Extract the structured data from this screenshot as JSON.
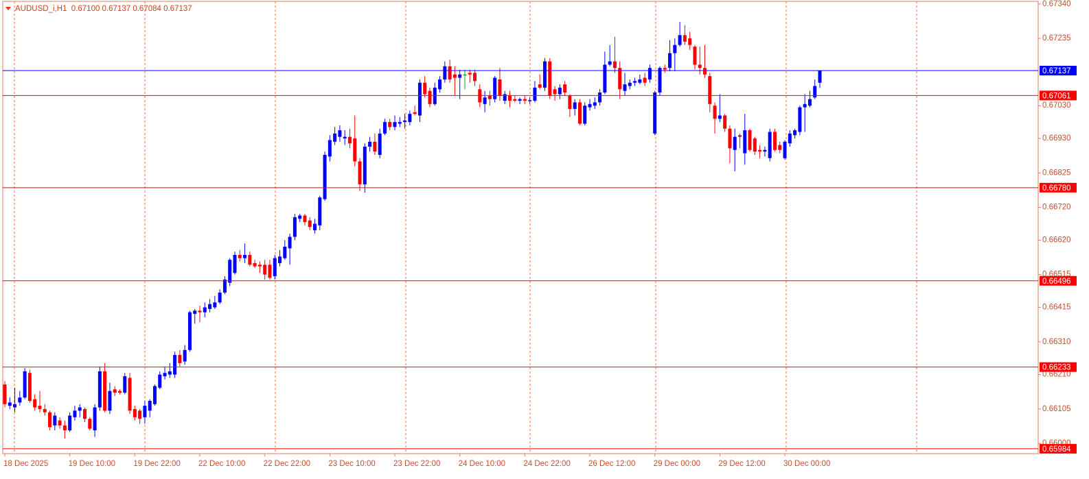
{
  "chart_data": {
    "type": "candlestick",
    "title": "AUDUSD_i,H1  0.67100 0.67137 0.67084 0.67137",
    "bull_color": "#0000ff",
    "bear_color": "#ff0000",
    "doji_color": "#00b000",
    "categories": [
      "18 Dec 2025",
      null,
      null,
      null,
      null,
      null,
      null,
      null,
      null,
      null,
      null,
      null,
      null,
      "19 Dec 10:00",
      null,
      null,
      null,
      null,
      null,
      null,
      null,
      null,
      null,
      null,
      null,
      null,
      "19 Dec 22:00",
      null,
      null,
      null,
      null,
      null,
      null,
      null,
      null,
      null,
      null,
      null,
      null,
      "22 Dec 10:00",
      null,
      null,
      null,
      null,
      null,
      null,
      null,
      null,
      null,
      null,
      null,
      null,
      "22 Dec 22:00",
      null,
      null,
      null,
      null,
      null,
      null,
      null,
      null,
      null,
      null,
      null,
      null,
      "23 Dec 10:00",
      null,
      null,
      null,
      null,
      null,
      null,
      null,
      null,
      null,
      null,
      null,
      null,
      "23 Dec 22:00",
      null,
      null,
      null,
      null,
      null,
      null,
      null,
      null,
      null,
      null,
      null,
      null,
      "24 Dec 10:00",
      null,
      null,
      null,
      null,
      null,
      null,
      null,
      null,
      null,
      null,
      null,
      null,
      "24 Dec 22:00",
      null,
      null,
      null,
      null,
      null,
      null,
      null,
      null,
      null,
      null,
      null,
      null,
      "26 Dec 12:00",
      null,
      null,
      null,
      null,
      null,
      null,
      null,
      null,
      null,
      null,
      null,
      null,
      "29 Dec 00:00",
      null,
      null,
      null,
      null,
      null,
      null,
      null,
      null,
      null,
      null,
      null,
      null,
      "29 Dec 12:00",
      null,
      null,
      null,
      null,
      null,
      null,
      null,
      null,
      null,
      null,
      null,
      null,
      "30 Dec 00:00",
      null,
      null,
      null,
      null,
      null,
      null,
      null
    ],
    "open": [
      0.6618,
      0.66115,
      0.6611,
      0.66125,
      0.6614,
      0.66215,
      0.66135,
      0.66115,
      0.66105,
      0.66095,
      0.66055,
      0.6607,
      0.66055,
      0.6604,
      0.6608,
      0.661,
      0.66105,
      0.66075,
      0.6604,
      0.6611,
      0.6622,
      0.661,
      0.66165,
      0.6616,
      0.66155,
      0.662,
      0.66105,
      0.661,
      0.6608,
      0.661,
      0.6612,
      0.6617,
      0.66205,
      0.6621,
      0.6621,
      0.6627,
      0.6625,
      0.66285,
      0.66395,
      0.66405,
      0.664,
      0.6641,
      0.66415,
      0.6643,
      0.6646,
      0.6649,
      0.6652,
      0.66575,
      0.66565,
      0.66575,
      0.6655,
      0.66545,
      0.66545,
      0.66545,
      0.6651,
      0.6655,
      0.66565,
      0.66595,
      0.6663,
      0.66685,
      0.66695,
      0.6668,
      0.6665,
      0.66665,
      0.66745,
      0.66875,
      0.6692,
      0.66935,
      0.6693,
      0.66935,
      0.6693,
      0.6686,
      0.6679,
      0.66905,
      0.6692,
      0.6688,
      0.66945,
      0.6698,
      0.66965,
      0.66975,
      0.6698,
      0.6698,
      0.6701,
      0.67,
      0.671,
      0.67075,
      0.67035,
      0.6708,
      0.6711,
      0.6715,
      0.67125,
      0.67115,
      0.67125,
      0.6713,
      0.6713,
      0.6708,
      0.67035,
      0.6706,
      0.6705,
      0.6711,
      0.67045,
      0.6706,
      0.6705,
      0.67045,
      0.6705,
      0.67045,
      0.67045,
      0.67095,
      0.67085,
      0.67165,
      0.6708,
      0.67065,
      0.67095,
      0.6706,
      0.6702,
      0.6704,
      0.66975,
      0.67025,
      0.6703,
      0.6704,
      0.6707,
      0.67155,
      0.67165,
      0.67145,
      0.67075,
      0.6709,
      0.671,
      0.671,
      0.67115,
      0.6711,
      0.66945,
      0.6707,
      0.67145,
      0.67145,
      0.6719,
      0.67215,
      0.67245,
      0.67235,
      0.6721,
      0.67155,
      0.67145,
      0.6712,
      0.6703,
      0.6699,
      0.67,
      0.6696,
      0.66895,
      0.6694,
      0.66885,
      0.66955,
      0.6693,
      0.66895,
      0.6689,
      0.6687,
      0.6695,
      0.6691,
      0.6687,
      0.66915,
      0.6694,
      0.6695,
      0.67025,
      0.6703,
      0.67055,
      0.671
    ],
    "high": [
      0.6619,
      0.6614,
      0.6617,
      0.6616,
      0.6623,
      0.66225,
      0.6615,
      0.6616,
      0.6612,
      0.661,
      0.66095,
      0.6608,
      0.6607,
      0.66095,
      0.66115,
      0.6612,
      0.6611,
      0.6608,
      0.6612,
      0.66235,
      0.66245,
      0.66185,
      0.66175,
      0.66165,
      0.66215,
      0.66215,
      0.66115,
      0.66105,
      0.6613,
      0.66135,
      0.6618,
      0.6622,
      0.66235,
      0.66245,
      0.6628,
      0.66285,
      0.663,
      0.66405,
      0.6641,
      0.6642,
      0.6643,
      0.6644,
      0.6645,
      0.6647,
      0.6651,
      0.66565,
      0.66585,
      0.6659,
      0.6661,
      0.66585,
      0.6656,
      0.66555,
      0.6656,
      0.6656,
      0.66575,
      0.6659,
      0.6662,
      0.6664,
      0.667,
      0.667,
      0.667,
      0.6669,
      0.66685,
      0.66755,
      0.6689,
      0.6694,
      0.66965,
      0.6697,
      0.66955,
      0.6696,
      0.67,
      0.6687,
      0.66915,
      0.66935,
      0.66945,
      0.6696,
      0.6699,
      0.6699,
      0.67,
      0.66995,
      0.67005,
      0.67015,
      0.6703,
      0.6711,
      0.6712,
      0.67085,
      0.671,
      0.6712,
      0.67165,
      0.6717,
      0.6715,
      0.6714,
      0.6714,
      0.6714,
      0.6714,
      0.67095,
      0.67075,
      0.67075,
      0.6712,
      0.67145,
      0.67075,
      0.67075,
      0.6706,
      0.67055,
      0.6706,
      0.67055,
      0.67105,
      0.67125,
      0.67175,
      0.67175,
      0.6709,
      0.67095,
      0.67105,
      0.67065,
      0.6705,
      0.6705,
      0.6704,
      0.6705,
      0.67055,
      0.6708,
      0.67195,
      0.67215,
      0.6724,
      0.67165,
      0.6713,
      0.6711,
      0.67115,
      0.67125,
      0.6713,
      0.67155,
      0.67075,
      0.6715,
      0.67155,
      0.6723,
      0.67235,
      0.67285,
      0.67275,
      0.67255,
      0.67215,
      0.6721,
      0.67215,
      0.6713,
      0.6704,
      0.67065,
      0.67005,
      0.6697,
      0.6696,
      0.66945,
      0.67005,
      0.6696,
      0.66935,
      0.6691,
      0.66905,
      0.6696,
      0.6696,
      0.6692,
      0.66925,
      0.66955,
      0.6696,
      0.6703,
      0.67065,
      0.67075,
      0.6711,
      0.67137
    ],
    "low": [
      0.6611,
      0.66105,
      0.66095,
      0.66115,
      0.66135,
      0.66125,
      0.661,
      0.66095,
      0.66085,
      0.6604,
      0.6604,
      0.66045,
      0.66015,
      0.66035,
      0.6607,
      0.6608,
      0.66065,
      0.6604,
      0.6602,
      0.661,
      0.66095,
      0.6609,
      0.66145,
      0.6615,
      0.6615,
      0.6609,
      0.6607,
      0.6606,
      0.6606,
      0.6608,
      0.66115,
      0.66165,
      0.66195,
      0.662,
      0.662,
      0.66235,
      0.6624,
      0.6628,
      0.66365,
      0.6637,
      0.66385,
      0.664,
      0.6641,
      0.66425,
      0.66455,
      0.6648,
      0.66515,
      0.66555,
      0.6655,
      0.6654,
      0.66535,
      0.6652,
      0.665,
      0.665,
      0.665,
      0.6654,
      0.6656,
      0.66545,
      0.6662,
      0.66675,
      0.66665,
      0.6665,
      0.6664,
      0.6665,
      0.6674,
      0.6686,
      0.6691,
      0.6692,
      0.6691,
      0.669,
      0.66845,
      0.6677,
      0.66765,
      0.6689,
      0.6688,
      0.6687,
      0.6694,
      0.66955,
      0.66955,
      0.66965,
      0.6696,
      0.6697,
      0.67,
      0.6698,
      0.67055,
      0.67025,
      0.6703,
      0.6707,
      0.671,
      0.671,
      0.6706,
      0.6705,
      0.6708,
      0.671,
      0.6709,
      0.67025,
      0.6701,
      0.6703,
      0.6704,
      0.67045,
      0.67035,
      0.67025,
      0.6704,
      0.67035,
      0.67035,
      0.67035,
      0.6704,
      0.6708,
      0.67075,
      0.6705,
      0.67045,
      0.6705,
      0.6706,
      0.66995,
      0.67,
      0.6697,
      0.6697,
      0.67015,
      0.6702,
      0.6703,
      0.67065,
      0.6715,
      0.6713,
      0.6705,
      0.6706,
      0.6708,
      0.6709,
      0.67095,
      0.6709,
      0.671,
      0.6694,
      0.6706,
      0.6713,
      0.67135,
      0.67135,
      0.6721,
      0.67215,
      0.672,
      0.6714,
      0.67125,
      0.67115,
      0.6701,
      0.66945,
      0.6698,
      0.6695,
      0.66855,
      0.6683,
      0.669,
      0.6685,
      0.6689,
      0.6688,
      0.6687,
      0.66875,
      0.6686,
      0.6689,
      0.66885,
      0.66865,
      0.66905,
      0.6693,
      0.6694,
      0.6695,
      0.67025,
      0.6705,
      0.67084
    ],
    "close": [
      0.6612,
      0.66125,
      0.6612,
      0.6614,
      0.6622,
      0.6613,
      0.6611,
      0.66105,
      0.66095,
      0.6605,
      0.66085,
      0.66055,
      0.6604,
      0.66085,
      0.661,
      0.6611,
      0.66075,
      0.66045,
      0.6611,
      0.6622,
      0.661,
      0.6616,
      0.66155,
      0.66155,
      0.66205,
      0.661,
      0.6608,
      0.66075,
      0.66115,
      0.6613,
      0.66175,
      0.6621,
      0.66215,
      0.6622,
      0.6627,
      0.66245,
      0.66285,
      0.664,
      0.66405,
      0.664,
      0.66415,
      0.66425,
      0.6643,
      0.6646,
      0.665,
      0.6656,
      0.66575,
      0.66565,
      0.66575,
      0.66545,
      0.6654,
      0.6654,
      0.66515,
      0.66505,
      0.66565,
      0.6657,
      0.666,
      0.6663,
      0.6669,
      0.66695,
      0.66675,
      0.6666,
      0.6667,
      0.6675,
      0.6688,
      0.66925,
      0.66945,
      0.66955,
      0.66935,
      0.66915,
      0.6686,
      0.6679,
      0.66905,
      0.6692,
      0.6689,
      0.66945,
      0.6698,
      0.66965,
      0.6698,
      0.6698,
      0.66985,
      0.67005,
      0.67005,
      0.671,
      0.67065,
      0.67035,
      0.67085,
      0.6711,
      0.6715,
      0.6711,
      0.67115,
      0.67125,
      0.67125,
      0.67125,
      0.67105,
      0.6704,
      0.67055,
      0.6705,
      0.67115,
      0.6706,
      0.67065,
      0.67045,
      0.67045,
      0.6705,
      0.67045,
      0.67047,
      0.67085,
      0.67085,
      0.67165,
      0.6706,
      0.67065,
      0.67085,
      0.6707,
      0.6702,
      0.6704,
      0.66975,
      0.6703,
      0.67035,
      0.6704,
      0.6707,
      0.67155,
      0.67165,
      0.67145,
      0.6708,
      0.67095,
      0.671,
      0.67105,
      0.6711,
      0.671,
      0.67145,
      0.6707,
      0.67145,
      0.6714,
      0.6719,
      0.67215,
      0.67245,
      0.67225,
      0.67215,
      0.67155,
      0.67145,
      0.67125,
      0.67035,
      0.6699,
      0.67,
      0.6696,
      0.669,
      0.66935,
      0.66935,
      0.66955,
      0.66895,
      0.6689,
      0.6689,
      0.66895,
      0.6695,
      0.66895,
      0.66895,
      0.6692,
      0.66945,
      0.66955,
      0.67025,
      0.67035,
      0.6705,
      0.6709,
      0.67137
    ],
    "ylim": [
      0.65969,
      0.67348
    ],
    "yticks": [
      {
        "value": 0.6734,
        "label": "0.67340"
      },
      0.67235,
      {
        "value": 0.6703,
        "label": "0.67030"
      },
      {
        "value": 0.6693,
        "label": "0.66930"
      },
      0.66825,
      {
        "value": 0.6672,
        "label": "0.66720"
      },
      {
        "value": 0.6662,
        "label": "0.66620"
      },
      0.66515,
      0.66415,
      {
        "value": 0.6631,
        "label": "0.66310"
      },
      {
        "value": 0.6621,
        "label": "0.66210"
      },
      0.66105,
      {
        "value": 0.66,
        "label": "0.66000"
      }
    ],
    "levels": [
      {
        "value": 0.67137,
        "color": "#0000ff"
      },
      {
        "value": 0.67061,
        "color": "#ff0000"
      },
      {
        "value": 0.6678,
        "label": "0.66780",
        "color": "#ff0000"
      },
      {
        "value": 0.66496,
        "color": "#ff0000"
      },
      {
        "value": 0.66233,
        "color": "#ff0000"
      },
      {
        "value": 0.65984,
        "color": "#ff0000"
      }
    ]
  }
}
